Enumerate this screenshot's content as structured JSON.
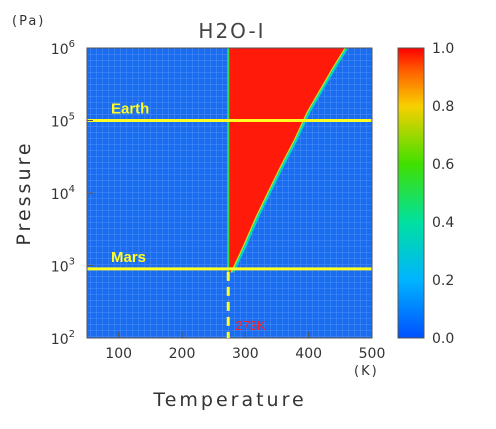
{
  "chart_data": {
    "type": "heatmap",
    "title": "H2O-I",
    "xlabel": "Temperature",
    "ylabel": "Pressure",
    "x_unit": "(K)",
    "y_unit": "(Pa)",
    "xlim": [
      50,
      500
    ],
    "ylim_log10": [
      2,
      6
    ],
    "y_scale": "log",
    "x_ticks": [
      100,
      200,
      300,
      400,
      500
    ],
    "y_tick_exponents": [
      2,
      3,
      4,
      5,
      6
    ],
    "y_tick_base": "10",
    "colorbar": {
      "range": [
        0.0,
        1.0
      ],
      "ticks": [
        "0.0",
        "0.2",
        "0.4",
        "0.6",
        "0.8",
        "1.0"
      ]
    },
    "background_value": 0.0,
    "region_value": 1.0,
    "region_boundary_left_T": 273,
    "region_boundary_right": [
      {
        "T": 280,
        "P": 800
      },
      {
        "T": 300,
        "P": 1900
      },
      {
        "T": 320,
        "P": 4800
      },
      {
        "T": 340,
        "P": 11000
      },
      {
        "T": 360,
        "P": 25000
      },
      {
        "T": 380,
        "P": 54000
      },
      {
        "T": 400,
        "P": 130000
      },
      {
        "T": 420,
        "P": 260000
      },
      {
        "T": 440,
        "P": 520000
      },
      {
        "T": 460,
        "P": 1000000
      }
    ],
    "reference_lines": [
      {
        "label": "Earth",
        "P": 100000
      },
      {
        "label": "Mars",
        "P": 900
      }
    ],
    "vertical_marker": {
      "T": 273,
      "label": "273K"
    }
  }
}
